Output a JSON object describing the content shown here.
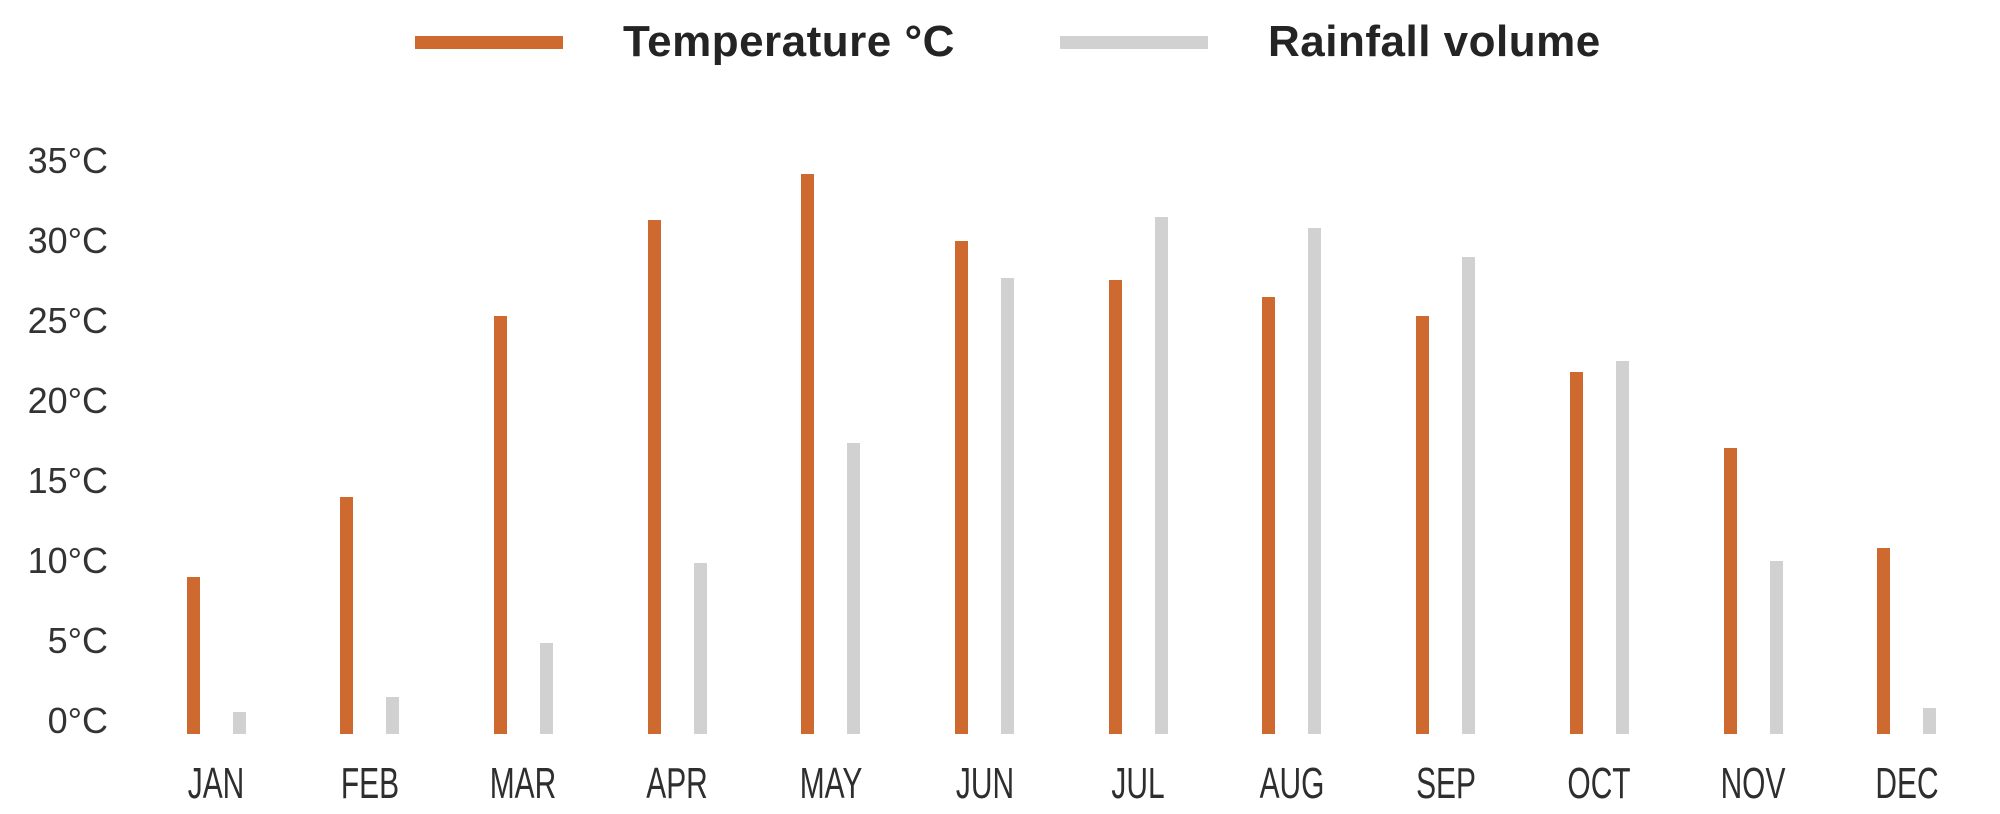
{
  "chart_data": {
    "type": "bar",
    "title": "",
    "categories": [
      "JAN",
      "FEB",
      "MAR",
      "APR",
      "MAY",
      "JUN",
      "JUL",
      "AUG",
      "SEP",
      "OCT",
      "NOV",
      "DEC"
    ],
    "series": [
      {
        "name": "Temperature °C",
        "color": "#ce6a2f",
        "values": [
          9.8,
          14.8,
          26.1,
          32.1,
          35.0,
          30.8,
          28.4,
          27.3,
          26.1,
          22.6,
          17.9,
          11.6
        ]
      },
      {
        "name": "Rainfall volume",
        "color": "#d1d1d1",
        "values": [
          1.4,
          2.3,
          5.7,
          10.7,
          18.2,
          28.5,
          32.3,
          31.6,
          29.8,
          23.3,
          10.8,
          1.6
        ]
      }
    ],
    "y_ticks": [
      "0°C",
      "5°C",
      "10°C",
      "15°C",
      "20°C",
      "25°C",
      "30°C",
      "35°C"
    ],
    "ylim": [
      0,
      35
    ],
    "y_tick_step": 5,
    "y_unit": "°C",
    "grid": false,
    "legend_position": "top",
    "background": "#ffffff",
    "text_color": "#333333"
  }
}
